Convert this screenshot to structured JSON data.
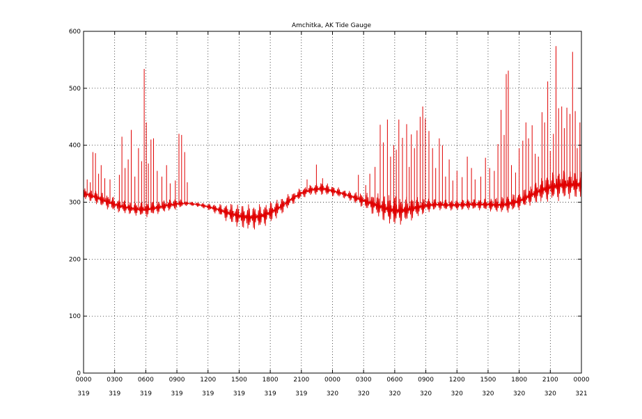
{
  "chart_data": {
    "type": "line",
    "title": "Amchitka, AK Tide Gauge",
    "xlabel": "",
    "ylabel": "",
    "ylim": [
      0,
      600
    ],
    "xlim": [
      0,
      48
    ],
    "grid": true,
    "legend": "none",
    "y_ticks": [
      0,
      100,
      200,
      300,
      400,
      500,
      600
    ],
    "x_ticks": [
      {
        "hours": 0,
        "time": "0000",
        "day": "319"
      },
      {
        "hours": 3,
        "time": "0300",
        "day": "319"
      },
      {
        "hours": 6,
        "time": "0600",
        "day": "319"
      },
      {
        "hours": 9,
        "time": "0900",
        "day": "319"
      },
      {
        "hours": 12,
        "time": "1200",
        "day": "319"
      },
      {
        "hours": 15,
        "time": "1500",
        "day": "319"
      },
      {
        "hours": 18,
        "time": "1800",
        "day": "319"
      },
      {
        "hours": 21,
        "time": "2100",
        "day": "319"
      },
      {
        "hours": 24,
        "time": "0000",
        "day": "320"
      },
      {
        "hours": 27,
        "time": "0300",
        "day": "320"
      },
      {
        "hours": 30,
        "time": "0600",
        "day": "320"
      },
      {
        "hours": 33,
        "time": "0900",
        "day": "320"
      },
      {
        "hours": 36,
        "time": "1200",
        "day": "320"
      },
      {
        "hours": 39,
        "time": "1500",
        "day": "320"
      },
      {
        "hours": 42,
        "time": "1800",
        "day": "320"
      },
      {
        "hours": 45,
        "time": "2100",
        "day": "320"
      },
      {
        "hours": 48,
        "time": "0000",
        "day": "321"
      }
    ],
    "series": [
      {
        "color": "#e00000",
        "x": [
          0,
          1,
          2,
          3,
          4,
          5,
          6,
          7,
          8,
          9,
          10,
          11,
          12,
          13,
          14,
          15,
          16,
          17,
          18,
          19,
          20,
          21,
          22,
          23,
          24,
          25,
          26,
          27,
          28,
          29,
          30,
          31,
          32,
          33,
          34,
          35,
          36,
          37,
          38,
          39,
          40,
          41,
          42,
          43,
          44,
          45,
          46,
          47,
          48
        ],
        "values": [
          315,
          310,
          303,
          296,
          291,
          288,
          287,
          290,
          294,
          297,
          298,
          296,
          292,
          287,
          281,
          276,
          273,
          275,
          282,
          292,
          305,
          316,
          322,
          324,
          320,
          315,
          309,
          303,
          296,
          290,
          285,
          286,
          290,
          294,
          296,
          295,
          295,
          296,
          296,
          296,
          295,
          297,
          302,
          311,
          320,
          326,
          330,
          331,
          330
        ],
        "oscillation_amplitude": [
          10,
          12,
          14,
          13,
          12,
          12,
          14,
          12,
          11,
          10,
          4,
          4,
          6,
          10,
          18,
          22,
          24,
          22,
          20,
          16,
          12,
          10,
          10,
          12,
          10,
          8,
          10,
          14,
          20,
          26,
          28,
          24,
          20,
          14,
          10,
          10,
          10,
          10,
          10,
          12,
          14,
          16,
          16,
          18,
          22,
          26,
          28,
          26,
          24
        ],
        "spikes": [
          {
            "x": 0.35,
            "value": 340
          },
          {
            "x": 0.65,
            "value": 335
          },
          {
            "x": 0.9,
            "value": 388
          },
          {
            "x": 1.15,
            "value": 386
          },
          {
            "x": 1.45,
            "value": 350
          },
          {
            "x": 1.7,
            "value": 365
          },
          {
            "x": 2.05,
            "value": 342
          },
          {
            "x": 2.55,
            "value": 340
          },
          {
            "x": 3.45,
            "value": 348
          },
          {
            "x": 3.7,
            "value": 415
          },
          {
            "x": 4.0,
            "value": 360
          },
          {
            "x": 4.3,
            "value": 375
          },
          {
            "x": 4.6,
            "value": 427
          },
          {
            "x": 4.95,
            "value": 345
          },
          {
            "x": 5.3,
            "value": 395
          },
          {
            "x": 5.6,
            "value": 372
          },
          {
            "x": 5.85,
            "value": 534
          },
          {
            "x": 6.05,
            "value": 440
          },
          {
            "x": 6.25,
            "value": 368
          },
          {
            "x": 6.5,
            "value": 410
          },
          {
            "x": 6.75,
            "value": 412
          },
          {
            "x": 7.1,
            "value": 355
          },
          {
            "x": 7.55,
            "value": 345
          },
          {
            "x": 8.0,
            "value": 365
          },
          {
            "x": 8.35,
            "value": 333
          },
          {
            "x": 8.85,
            "value": 338
          },
          {
            "x": 9.2,
            "value": 420
          },
          {
            "x": 9.45,
            "value": 418
          },
          {
            "x": 9.75,
            "value": 388
          },
          {
            "x": 10.0,
            "value": 335
          },
          {
            "x": 21.55,
            "value": 340
          },
          {
            "x": 22.45,
            "value": 366
          },
          {
            "x": 23.05,
            "value": 342
          },
          {
            "x": 26.5,
            "value": 348
          },
          {
            "x": 27.2,
            "value": 330
          },
          {
            "x": 27.6,
            "value": 350
          },
          {
            "x": 28.1,
            "value": 362
          },
          {
            "x": 28.6,
            "value": 436
          },
          {
            "x": 28.9,
            "value": 405
          },
          {
            "x": 29.3,
            "value": 445
          },
          {
            "x": 29.6,
            "value": 380
          },
          {
            "x": 29.9,
            "value": 400
          },
          {
            "x": 30.15,
            "value": 392
          },
          {
            "x": 30.4,
            "value": 445
          },
          {
            "x": 30.75,
            "value": 413
          },
          {
            "x": 31.15,
            "value": 437
          },
          {
            "x": 31.4,
            "value": 362
          },
          {
            "x": 31.6,
            "value": 419
          },
          {
            "x": 31.9,
            "value": 395
          },
          {
            "x": 32.15,
            "value": 426
          },
          {
            "x": 32.45,
            "value": 450
          },
          {
            "x": 32.7,
            "value": 468
          },
          {
            "x": 32.95,
            "value": 447
          },
          {
            "x": 33.3,
            "value": 425
          },
          {
            "x": 33.65,
            "value": 395
          },
          {
            "x": 33.95,
            "value": 360
          },
          {
            "x": 34.3,
            "value": 412
          },
          {
            "x": 34.6,
            "value": 400
          },
          {
            "x": 34.9,
            "value": 345
          },
          {
            "x": 35.25,
            "value": 375
          },
          {
            "x": 35.6,
            "value": 338
          },
          {
            "x": 36.0,
            "value": 355
          },
          {
            "x": 36.5,
            "value": 344
          },
          {
            "x": 37.0,
            "value": 380
          },
          {
            "x": 37.4,
            "value": 360
          },
          {
            "x": 37.75,
            "value": 340
          },
          {
            "x": 38.3,
            "value": 345
          },
          {
            "x": 38.75,
            "value": 378
          },
          {
            "x": 39.15,
            "value": 360
          },
          {
            "x": 39.6,
            "value": 355
          },
          {
            "x": 39.95,
            "value": 402
          },
          {
            "x": 40.25,
            "value": 462
          },
          {
            "x": 40.55,
            "value": 418
          },
          {
            "x": 40.75,
            "value": 525
          },
          {
            "x": 40.95,
            "value": 531
          },
          {
            "x": 41.25,
            "value": 365
          },
          {
            "x": 41.65,
            "value": 352
          },
          {
            "x": 42.0,
            "value": 395
          },
          {
            "x": 42.35,
            "value": 408
          },
          {
            "x": 42.65,
            "value": 440
          },
          {
            "x": 42.9,
            "value": 412
          },
          {
            "x": 43.25,
            "value": 435
          },
          {
            "x": 43.55,
            "value": 385
          },
          {
            "x": 43.85,
            "value": 380
          },
          {
            "x": 44.2,
            "value": 458
          },
          {
            "x": 44.45,
            "value": 440
          },
          {
            "x": 44.75,
            "value": 512
          },
          {
            "x": 45.0,
            "value": 390
          },
          {
            "x": 45.3,
            "value": 420
          },
          {
            "x": 45.55,
            "value": 574
          },
          {
            "x": 45.8,
            "value": 465
          },
          {
            "x": 46.1,
            "value": 468
          },
          {
            "x": 46.35,
            "value": 430
          },
          {
            "x": 46.6,
            "value": 466
          },
          {
            "x": 46.9,
            "value": 455
          },
          {
            "x": 47.15,
            "value": 564
          },
          {
            "x": 47.4,
            "value": 460
          },
          {
            "x": 47.6,
            "value": 395
          },
          {
            "x": 47.85,
            "value": 440
          }
        ]
      }
    ]
  }
}
